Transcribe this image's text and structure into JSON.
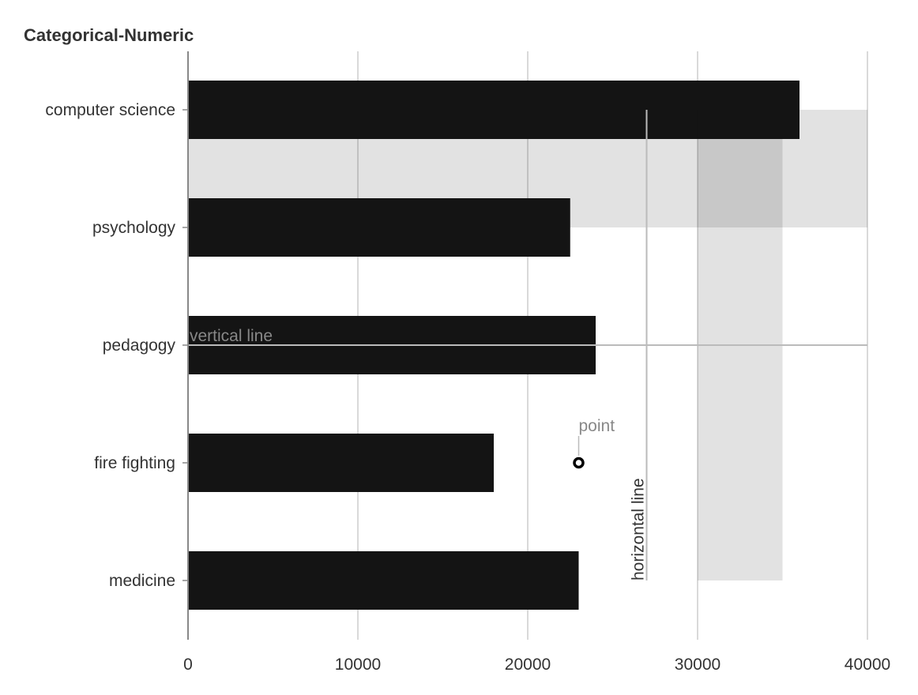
{
  "chart_data": {
    "type": "bar",
    "orientation": "horizontal",
    "title": "Categorical-Numeric",
    "xlabel": "",
    "ylabel": "",
    "categories": [
      "computer science",
      "psychology",
      "pedagogy",
      "fire fighting",
      "medicine"
    ],
    "values": [
      36000,
      22500,
      24000,
      18000,
      23000
    ],
    "xlim": [
      0,
      40000
    ],
    "xticks": [
      0,
      10000,
      20000,
      30000,
      40000
    ],
    "grid": true,
    "colors": {
      "bar": "#111111",
      "grid": "#d9d9d9",
      "band": "#e0e0e0",
      "annotation": "#bbbbbb",
      "annotation_text": "#888888"
    },
    "annotations": [
      {
        "type": "band",
        "from_category": "computer science",
        "to_category": "psychology",
        "x_from": 0,
        "x_to": 40000
      },
      {
        "type": "band",
        "from_category": "computer science",
        "to_category": "medicine",
        "x_from": 30000,
        "x_to": 35000
      },
      {
        "type": "rule",
        "category": "pedagogy",
        "x_from": 0,
        "x_to": 40000,
        "label": "vertical line"
      },
      {
        "type": "rule",
        "x": 27000,
        "from_category": "computer science",
        "to_category": "medicine",
        "label": "horizontal line"
      },
      {
        "type": "point",
        "x": 23000,
        "category": "fire fighting",
        "label": "point"
      }
    ]
  }
}
